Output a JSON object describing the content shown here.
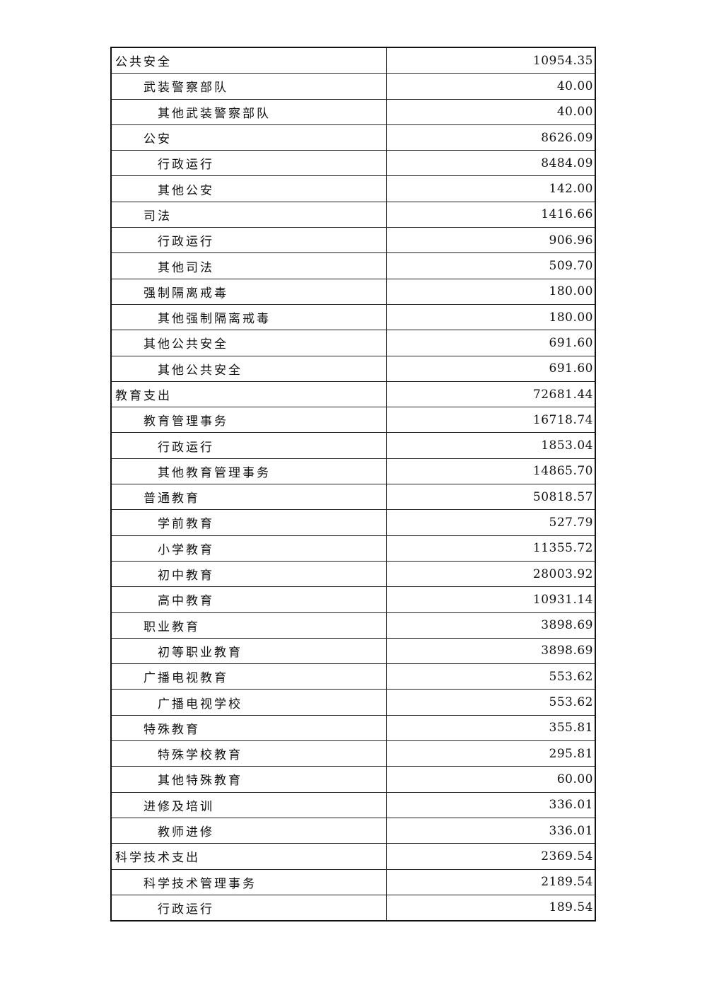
{
  "table": {
    "rows": [
      {
        "name": "公共安全",
        "level": 0,
        "value": "10954.35"
      },
      {
        "name": "武装警察部队",
        "level": 1,
        "value": "40.00"
      },
      {
        "name": "其他武装警察部队",
        "level": 2,
        "value": "40.00"
      },
      {
        "name": "公安",
        "level": 1,
        "value": "8626.09"
      },
      {
        "name": "行政运行",
        "level": 2,
        "value": "8484.09"
      },
      {
        "name": "其他公安",
        "level": 2,
        "value": "142.00"
      },
      {
        "name": "司法",
        "level": 1,
        "value": "1416.66"
      },
      {
        "name": "行政运行",
        "level": 2,
        "value": "906.96"
      },
      {
        "name": "其他司法",
        "level": 2,
        "value": "509.70"
      },
      {
        "name": "强制隔离戒毒",
        "level": 1,
        "value": "180.00"
      },
      {
        "name": "其他强制隔离戒毒",
        "level": 2,
        "value": "180.00"
      },
      {
        "name": "其他公共安全",
        "level": 1,
        "value": "691.60"
      },
      {
        "name": "其他公共安全",
        "level": 2,
        "value": "691.60"
      },
      {
        "name": "教育支出",
        "level": 0,
        "value": "72681.44"
      },
      {
        "name": "教育管理事务",
        "level": 1,
        "value": "16718.74"
      },
      {
        "name": "行政运行",
        "level": 2,
        "value": "1853.04"
      },
      {
        "name": "其他教育管理事务",
        "level": 2,
        "value": "14865.70"
      },
      {
        "name": "普通教育",
        "level": 1,
        "value": "50818.57"
      },
      {
        "name": "学前教育",
        "level": 2,
        "value": "527.79"
      },
      {
        "name": "小学教育",
        "level": 2,
        "value": "11355.72"
      },
      {
        "name": "初中教育",
        "level": 2,
        "value": "28003.92"
      },
      {
        "name": "高中教育",
        "level": 2,
        "value": "10931.14"
      },
      {
        "name": "职业教育",
        "level": 1,
        "value": "3898.69"
      },
      {
        "name": "初等职业教育",
        "level": 2,
        "value": "3898.69"
      },
      {
        "name": "广播电视教育",
        "level": 1,
        "value": "553.62"
      },
      {
        "name": "广播电视学校",
        "level": 2,
        "value": "553.62"
      },
      {
        "name": "特殊教育",
        "level": 1,
        "value": "355.81"
      },
      {
        "name": "特殊学校教育",
        "level": 2,
        "value": "295.81"
      },
      {
        "name": "其他特殊教育",
        "level": 2,
        "value": "60.00"
      },
      {
        "name": "进修及培训",
        "level": 1,
        "value": "336.01"
      },
      {
        "name": "教师进修",
        "level": 2,
        "value": "336.01"
      },
      {
        "name": "科学技术支出",
        "level": 0,
        "value": "2369.54"
      },
      {
        "name": "科学技术管理事务",
        "level": 1,
        "value": "2189.54"
      },
      {
        "name": "行政运行",
        "level": 2,
        "value": "189.54"
      }
    ]
  }
}
